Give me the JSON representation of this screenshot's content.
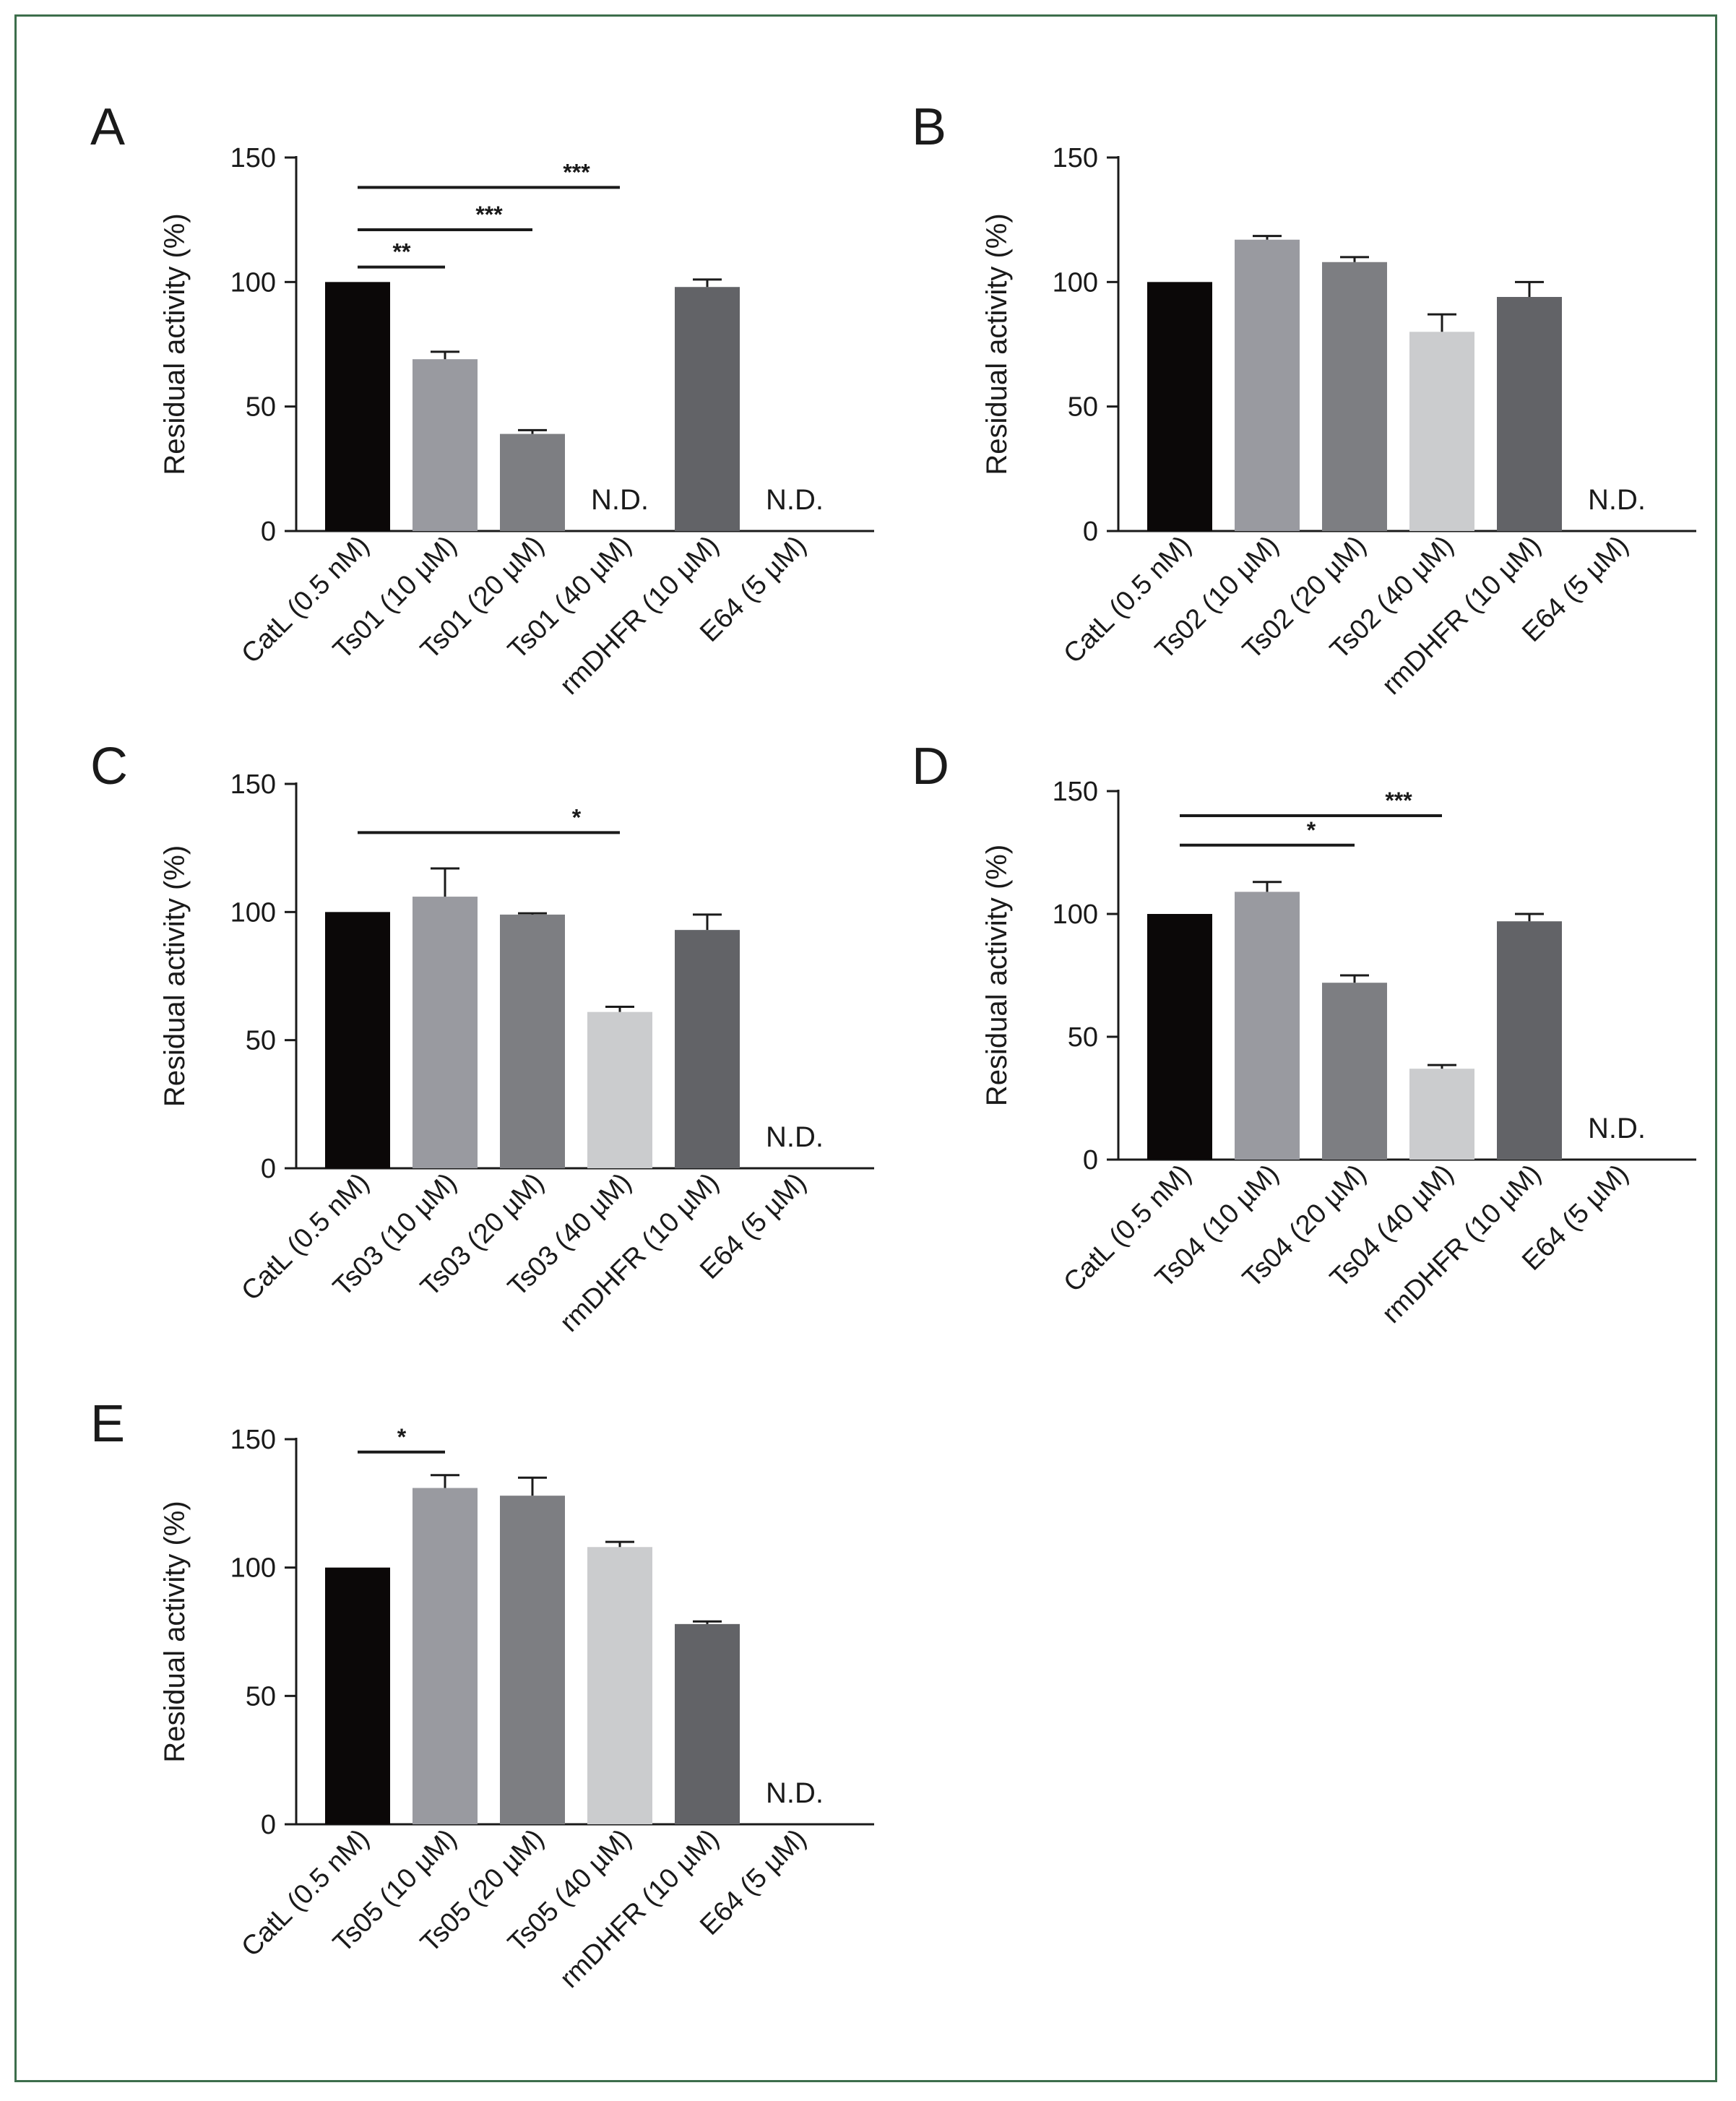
{
  "figure": {
    "border_color": "#3d6e4c"
  },
  "colors": [
    "#0b0808",
    "#999aa0",
    "#7d7e82",
    "#cbccce",
    "#626367",
    "#3a3a3a"
  ],
  "chart_data": [
    {
      "panel": "A",
      "type": "bar",
      "categories": [
        "CatL (0.5 nM)",
        "Ts01 (10 µM)",
        "Ts01 (20 µM)",
        "Ts01 (40 µM)",
        "rmDHFR (10 µM)",
        "E64 (5 µM)"
      ],
      "values": [
        100,
        69,
        39,
        null,
        98,
        null
      ],
      "errors": [
        0,
        3,
        1.5,
        null,
        3,
        null
      ],
      "labels": [
        "",
        "",
        "",
        "N.D.",
        "",
        "N.D."
      ],
      "ylabel": "Residual activity (%)",
      "ylim": [
        0,
        150
      ],
      "yticks": [
        0,
        50,
        100,
        150
      ],
      "significance": [
        {
          "from": 0,
          "to": 1,
          "label": "**",
          "level": 106
        },
        {
          "from": 0,
          "to": 2,
          "label": "***",
          "level": 121
        },
        {
          "from": 0,
          "to": 3,
          "label": "***",
          "level": 138
        }
      ]
    },
    {
      "panel": "B",
      "type": "bar",
      "categories": [
        "CatL (0.5 nM)",
        "Ts02 (10 µM)",
        "Ts02 (20 µM)",
        "Ts02 (40 µM)",
        "rmDHFR (10 µM)",
        "E64 (5 µM)"
      ],
      "values": [
        100,
        117,
        108,
        80,
        94,
        null
      ],
      "errors": [
        0,
        1.5,
        2,
        7,
        6,
        null
      ],
      "labels": [
        "",
        "",
        "",
        "",
        "",
        "N.D."
      ],
      "ylabel": "Residual activity (%)",
      "ylim": [
        0,
        150
      ],
      "yticks": [
        0,
        50,
        100,
        150
      ],
      "significance": []
    },
    {
      "panel": "C",
      "type": "bar",
      "categories": [
        "CatL (0.5 nM)",
        "Ts03 (10 µM)",
        "Ts03 (20 µM)",
        "Ts03 (40 µM)",
        "rmDHFR (10 µM)",
        "E64 (5 µM)"
      ],
      "values": [
        100,
        106,
        99,
        61,
        93,
        null
      ],
      "errors": [
        0,
        11,
        0.5,
        2,
        6,
        null
      ],
      "labels": [
        "",
        "",
        "",
        "",
        "",
        "N.D."
      ],
      "ylabel": "Residual activity (%)",
      "ylim": [
        0,
        150
      ],
      "yticks": [
        0,
        50,
        100,
        150
      ],
      "significance": [
        {
          "from": 0,
          "to": 3,
          "label": "*",
          "level": 131
        }
      ]
    },
    {
      "panel": "D",
      "type": "bar",
      "categories": [
        "CatL (0.5 nM)",
        "Ts04 (10 µM)",
        "Ts04 (20 µM)",
        "Ts04 (40 µM)",
        "rmDHFR (10 µM)",
        "E64 (5 µM)"
      ],
      "values": [
        100,
        109,
        72,
        37,
        97,
        null
      ],
      "errors": [
        0,
        4,
        3,
        1.5,
        3,
        null
      ],
      "labels": [
        "",
        "",
        "",
        "",
        "",
        "N.D."
      ],
      "ylabel": "Residual activity (%)",
      "ylim": [
        0,
        150
      ],
      "yticks": [
        0,
        50,
        100,
        150
      ],
      "significance": [
        {
          "from": 0,
          "to": 2,
          "label": "*",
          "level": 128
        },
        {
          "from": 0,
          "to": 3,
          "label": "***",
          "level": 140
        }
      ]
    },
    {
      "panel": "E",
      "type": "bar",
      "categories": [
        "CatL (0.5 nM)",
        "Ts05 (10 µM)",
        "Ts05 (20 µM)",
        "Ts05 (40 µM)",
        "rmDHFR (10 µM)",
        "E64 (5 µM)"
      ],
      "values": [
        100,
        131,
        128,
        108,
        78,
        null
      ],
      "errors": [
        0,
        5,
        7,
        2,
        1,
        null
      ],
      "labels": [
        "",
        "",
        "",
        "",
        "",
        "N.D."
      ],
      "ylabel": "Residual activity (%)",
      "ylim": [
        0,
        150
      ],
      "yticks": [
        0,
        50,
        100,
        150
      ],
      "significance": [
        {
          "from": 0,
          "to": 1,
          "label": "*",
          "level": 145
        }
      ]
    }
  ]
}
